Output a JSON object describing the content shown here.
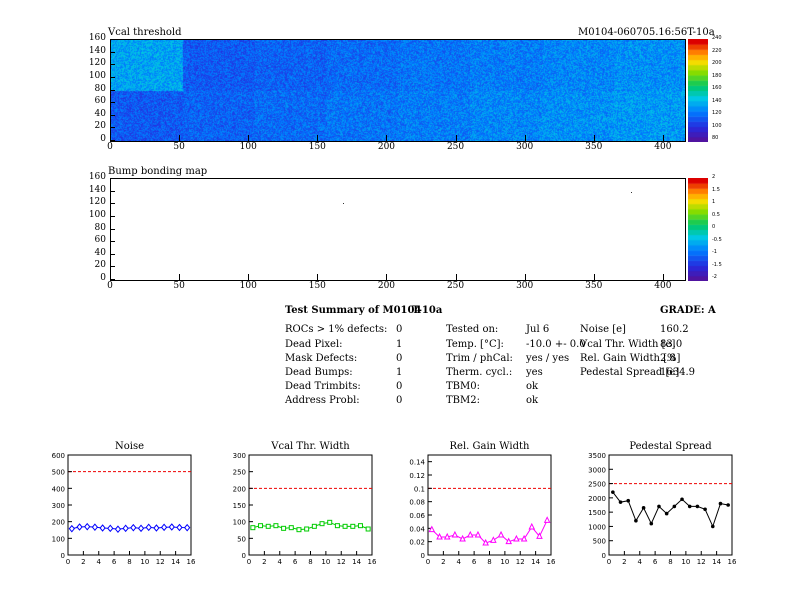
{
  "charts_top": {
    "vcal_map": {
      "title": "Vcal threshold",
      "run_label": "M0104-060705.16:56T-10a"
    },
    "bump_map": {
      "title": "Bump bonding map"
    },
    "x_ticks": [
      "0",
      "50",
      "100",
      "150",
      "200",
      "250",
      "300",
      "350",
      "400"
    ],
    "y_ticks": [
      "0",
      "20",
      "40",
      "60",
      "80",
      "100",
      "120",
      "140",
      "160"
    ],
    "vcal_scale_ticks": [
      "80",
      "100",
      "120",
      "140",
      "160",
      "180",
      "200",
      "220",
      "240"
    ],
    "bump_scale_ticks": [
      "-2",
      "-1.5",
      "-1",
      "-0.5",
      "0",
      "0.5",
      "1",
      "1.5",
      "2"
    ]
  },
  "summary": {
    "heading": "Test Summary of M0104",
    "temp_tag": "T-10a",
    "grade_label": "GRADE:",
    "grade": "A",
    "col1": [
      {
        "label": "ROCs > 1% defects:",
        "value": "0"
      },
      {
        "label": "Dead Pixel:",
        "value": "1"
      },
      {
        "label": "Mask Defects:",
        "value": "0"
      },
      {
        "label": "Dead Bumps:",
        "value": "1"
      },
      {
        "label": "Dead Trimbits:",
        "value": "0"
      },
      {
        "label": "Address Probl:",
        "value": "0"
      }
    ],
    "col2": [
      {
        "label": "Tested on:",
        "value": "Jul 6"
      },
      {
        "label": "Temp. [°C]:",
        "value": "-10.0 +- 0.0"
      },
      {
        "label": "Trim / phCal:",
        "value": "yes / yes"
      },
      {
        "label": "Therm. cycl.:",
        "value": "yes"
      },
      {
        "label": "TBM0:",
        "value": "ok"
      },
      {
        "label": "TBM2:",
        "value": "ok"
      }
    ],
    "col3": [
      {
        "label": "Noise [e]",
        "value": "160.2"
      },
      {
        "label": "Vcal Thr. Width [e]",
        "value": "83.0"
      },
      {
        "label": "Rel. Gain Width [%]",
        "value": "2.8"
      },
      {
        "label": "Pedestal Spread [e]",
        "value": "1634.9"
      }
    ]
  },
  "chart_data": [
    {
      "type": "heatmap",
      "title": "Vcal threshold",
      "xlim": [
        0,
        416
      ],
      "ylim": [
        0,
        160
      ],
      "zlim": [
        80,
        250
      ],
      "description_grid": "2 rows x 8 ROCs, values around 110-150"
    },
    {
      "type": "heatmap",
      "title": "Bump bonding map",
      "xlim": [
        0,
        416
      ],
      "ylim": [
        0,
        160
      ],
      "zlim": [
        -2,
        2
      ],
      "points": [
        {
          "x": 168,
          "y": 122
        },
        {
          "x": 377,
          "y": 140
        }
      ]
    },
    {
      "type": "line",
      "title": "Noise",
      "xlim": [
        0,
        16
      ],
      "ylim": [
        0,
        600
      ],
      "x_ticks": [
        "0",
        "2",
        "4",
        "6",
        "8",
        "10",
        "12",
        "14",
        "16"
      ],
      "y_ticks": [
        "0",
        "100",
        "200",
        "300",
        "400",
        "500",
        "600"
      ],
      "threshold": 500,
      "color": "#0000ff",
      "marker": "diamond",
      "x": [
        0.5,
        1.5,
        2.5,
        3.5,
        4.5,
        5.5,
        6.5,
        7.5,
        8.5,
        9.5,
        10.5,
        11.5,
        12.5,
        13.5,
        14.5,
        15.5
      ],
      "values": [
        158,
        168,
        170,
        167,
        162,
        160,
        155,
        160,
        164,
        160,
        166,
        162,
        166,
        168,
        165,
        164
      ]
    },
    {
      "type": "line",
      "title": "Vcal Thr. Width",
      "xlim": [
        0,
        16
      ],
      "ylim": [
        0,
        300
      ],
      "x_ticks": [
        "0",
        "2",
        "4",
        "6",
        "8",
        "10",
        "12",
        "14",
        "16"
      ],
      "y_ticks": [
        "0",
        "50",
        "100",
        "150",
        "200",
        "250",
        "300"
      ],
      "threshold": 200,
      "color": "#00cc00",
      "marker": "square",
      "x": [
        0.5,
        1.5,
        2.5,
        3.5,
        4.5,
        5.5,
        6.5,
        7.5,
        8.5,
        9.5,
        10.5,
        11.5,
        12.5,
        13.5,
        14.5,
        15.5
      ],
      "values": [
        82,
        88,
        86,
        88,
        80,
        82,
        76,
        78,
        86,
        94,
        98,
        88,
        86,
        86,
        88,
        78
      ]
    },
    {
      "type": "line",
      "title": "Rel. Gain Width",
      "xlim": [
        0,
        16
      ],
      "ylim": [
        0,
        0.15
      ],
      "x_ticks": [
        "0",
        "2",
        "4",
        "6",
        "8",
        "10",
        "12",
        "14",
        "16"
      ],
      "y_ticks": [
        "0",
        "0.02",
        "0.04",
        "0.06",
        "0.08",
        "0.1",
        "0.12",
        "0.14"
      ],
      "threshold": 0.1,
      "color": "#ff00ff",
      "marker": "triangle",
      "x": [
        0.5,
        1.5,
        2.5,
        3.5,
        4.5,
        5.5,
        6.5,
        7.5,
        8.5,
        9.5,
        10.5,
        11.5,
        12.5,
        13.5,
        14.5,
        15.5
      ],
      "values": [
        0.038,
        0.027,
        0.027,
        0.03,
        0.024,
        0.03,
        0.03,
        0.018,
        0.022,
        0.03,
        0.02,
        0.024,
        0.024,
        0.042,
        0.028,
        0.052
      ]
    },
    {
      "type": "line",
      "title": "Pedestal Spread",
      "xlim": [
        0,
        16
      ],
      "ylim": [
        0,
        3500
      ],
      "x_ticks": [
        "0",
        "2",
        "4",
        "6",
        "8",
        "10",
        "12",
        "14",
        "16"
      ],
      "y_ticks": [
        "0",
        "500",
        "1000",
        "1500",
        "2000",
        "2500",
        "3000",
        "3500"
      ],
      "threshold": 2500,
      "color": "#000000",
      "marker": "circle",
      "x": [
        0.5,
        1.5,
        2.5,
        3.5,
        4.5,
        5.5,
        6.5,
        7.5,
        8.5,
        9.5,
        10.5,
        11.5,
        12.5,
        13.5,
        14.5,
        15.5
      ],
      "values": [
        2200,
        1850,
        1900,
        1200,
        1650,
        1100,
        1700,
        1450,
        1700,
        1950,
        1700,
        1700,
        1600,
        1000,
        1800,
        1750
      ]
    }
  ]
}
